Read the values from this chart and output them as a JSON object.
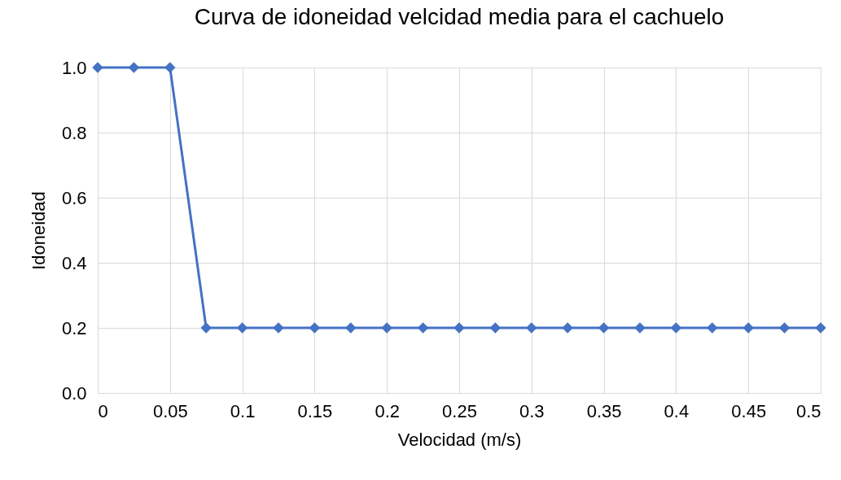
{
  "chart_data": {
    "type": "line",
    "title": "Curva de idoneidad velcidad media para el cachuelo",
    "xlabel": "Velocidad (m/s)",
    "ylabel": "Idoneidad",
    "x": [
      0,
      0.025,
      0.05,
      0.075,
      0.1,
      0.125,
      0.15,
      0.175,
      0.2,
      0.225,
      0.25,
      0.275,
      0.3,
      0.325,
      0.35,
      0.375,
      0.4,
      0.425,
      0.45,
      0.475,
      0.5
    ],
    "series": [
      {
        "color": "#4472c4",
        "values": [
          1,
          1,
          1,
          0.2,
          0.2,
          0.2,
          0.2,
          0.2,
          0.2,
          0.2,
          0.2,
          0.2,
          0.2,
          0.2,
          0.2,
          0.2,
          0.2,
          0.2,
          0.2,
          0.2,
          0.2
        ]
      }
    ],
    "xlim": [
      0,
      0.5
    ],
    "xticks": [
      0,
      0.05,
      0.1,
      0.15,
      0.2,
      0.25,
      0.3,
      0.35,
      0.4,
      0.45,
      0.5
    ],
    "ylim": [
      0,
      1
    ],
    "yticks": [
      {
        "value": 0,
        "label": "0.0"
      },
      0.2,
      0.4,
      0.6,
      0.8,
      {
        "value": 1,
        "label": "1.0"
      }
    ],
    "grid": true,
    "marker": "diamond",
    "line_style": "solid"
  }
}
